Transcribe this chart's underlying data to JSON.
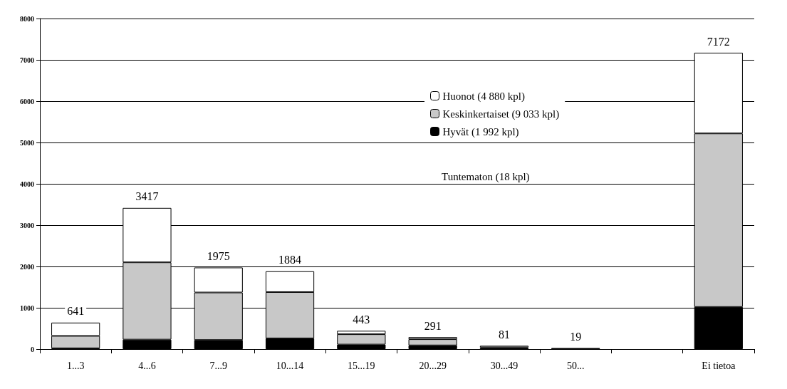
{
  "chart_data": {
    "type": "bar",
    "stacked": true,
    "categories": [
      "1...3",
      "4...6",
      "7...9",
      "10...14",
      "15...19",
      "20...29",
      "30...49",
      "50...",
      null,
      "Ei tietoa"
    ],
    "series": [
      {
        "name": "Hyvät (1 992 kpl)",
        "color": "#000000",
        "values": [
          20,
          230,
          220,
          260,
          110,
          90,
          40,
          10,
          null,
          1020
        ]
      },
      {
        "name": "Keskinkertaiset (9 033 kpl)",
        "color": "#c8c8c8",
        "values": [
          300,
          1870,
          1150,
          1120,
          250,
          150,
          41,
          9,
          null,
          4200
        ]
      },
      {
        "name": "Huonot (4 880 kpl)",
        "color": "#ffffff",
        "values": [
          321,
          1317,
          605,
          504,
          83,
          51,
          null,
          null,
          null,
          1952
        ]
      }
    ],
    "totals": [
      "641",
      "3417",
      "1975",
      "1884",
      "443",
      "291",
      "81",
      "19",
      null,
      "7172"
    ],
    "annotations": [
      "Tuntematon (18 kpl)"
    ],
    "ylim": [
      0,
      8000
    ],
    "yticks": [
      0,
      1000,
      2000,
      3000,
      4000,
      5000,
      6000,
      7000,
      8000
    ],
    "grid": "y",
    "legend": "top right"
  }
}
